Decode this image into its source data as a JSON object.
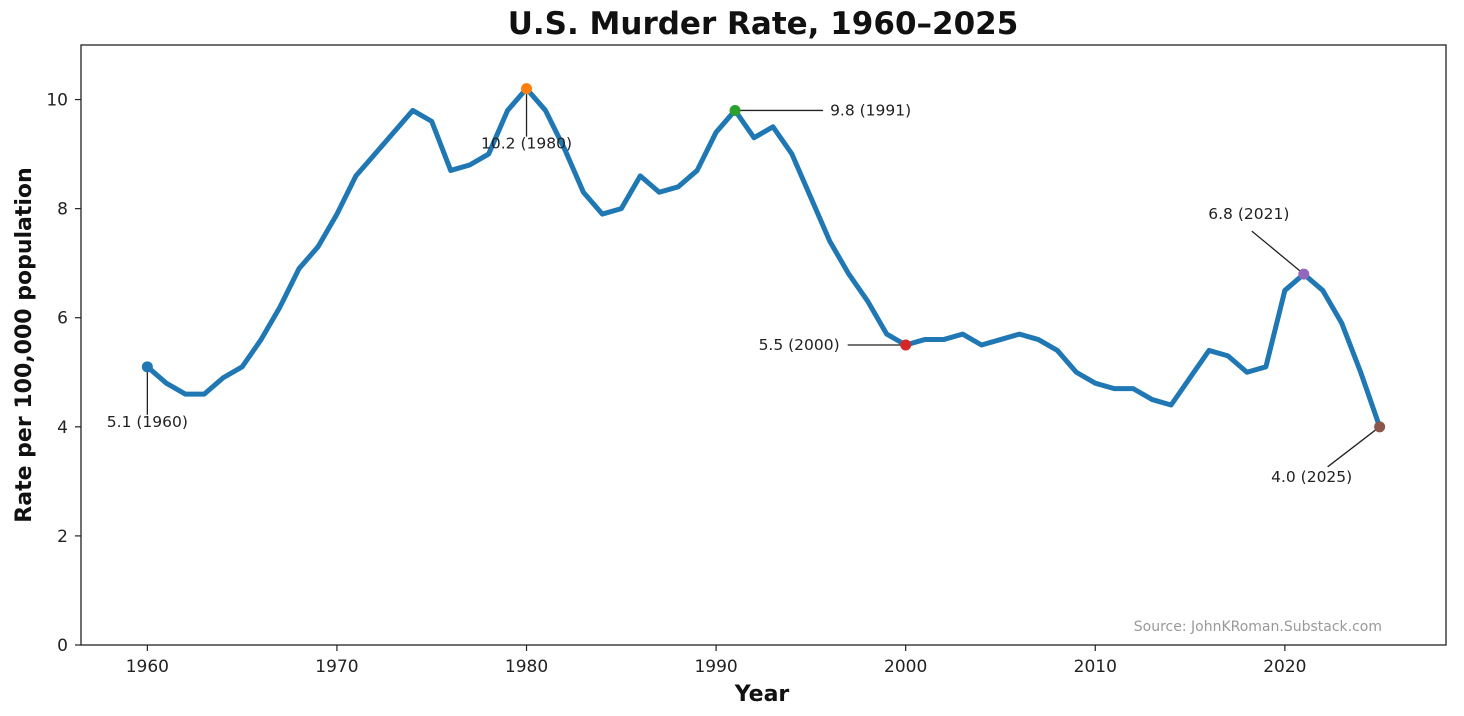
{
  "chart_data": {
    "type": "line",
    "title": "U.S. Murder Rate, 1960–2025",
    "xlabel": "Year",
    "ylabel": "Rate per 100,000 population",
    "xlim": [
      1956.5,
      2028.5
    ],
    "ylim": [
      0,
      11
    ],
    "xticks": [
      1960,
      1970,
      1980,
      1990,
      2000,
      2010,
      2020
    ],
    "yticks": [
      0,
      2,
      4,
      6,
      8,
      10
    ],
    "line_color": "#1f77b4",
    "source": "Source: JohnKRoman.Substack.com",
    "series": [
      {
        "name": "Murder rate",
        "x": [
          1960,
          1961,
          1962,
          1963,
          1964,
          1965,
          1966,
          1967,
          1968,
          1969,
          1970,
          1971,
          1972,
          1973,
          1974,
          1975,
          1976,
          1977,
          1978,
          1979,
          1980,
          1981,
          1982,
          1983,
          1984,
          1985,
          1986,
          1987,
          1988,
          1989,
          1990,
          1991,
          1992,
          1993,
          1994,
          1995,
          1996,
          1997,
          1998,
          1999,
          2000,
          2001,
          2002,
          2003,
          2004,
          2005,
          2006,
          2007,
          2008,
          2009,
          2010,
          2011,
          2012,
          2013,
          2014,
          2015,
          2016,
          2017,
          2018,
          2019,
          2020,
          2021,
          2022,
          2023,
          2024,
          2025
        ],
        "values": [
          5.1,
          4.8,
          4.6,
          4.6,
          4.9,
          5.1,
          5.6,
          6.2,
          6.9,
          7.3,
          7.9,
          8.6,
          9.0,
          9.4,
          9.8,
          9.6,
          8.7,
          8.8,
          9.0,
          9.8,
          10.2,
          9.8,
          9.1,
          8.3,
          7.9,
          8.0,
          8.6,
          8.3,
          8.4,
          8.7,
          9.4,
          9.8,
          9.3,
          9.5,
          9.0,
          8.2,
          7.4,
          6.8,
          6.3,
          5.7,
          5.5,
          5.6,
          5.6,
          5.7,
          5.5,
          5.6,
          5.7,
          5.6,
          5.4,
          5.0,
          4.8,
          4.7,
          4.7,
          4.5,
          4.4,
          4.9,
          5.4,
          5.3,
          5.0,
          5.1,
          6.5,
          6.8,
          6.5,
          5.9,
          5.0,
          4.0
        ]
      }
    ],
    "annotations": [
      {
        "year": 1960,
        "value": 5.1,
        "label": "5.1 (1960)",
        "color": "#1f77b4",
        "label_position": "below"
      },
      {
        "year": 1980,
        "value": 10.2,
        "label": "10.2 (1980)",
        "color": "#ff7f0e",
        "label_position": "below"
      },
      {
        "year": 1991,
        "value": 9.8,
        "label": "9.8 (1991)",
        "color": "#2ca02c",
        "label_position": "right"
      },
      {
        "year": 2000,
        "value": 5.5,
        "label": "5.5 (2000)",
        "color": "#d62728",
        "label_position": "left"
      },
      {
        "year": 2021,
        "value": 6.8,
        "label": "6.8 (2021)",
        "color": "#9467bd",
        "label_position": "upper-left"
      },
      {
        "year": 2025,
        "value": 4.0,
        "label": "4.0 (2025)",
        "color": "#8c564b",
        "label_position": "lower-left"
      }
    ]
  }
}
